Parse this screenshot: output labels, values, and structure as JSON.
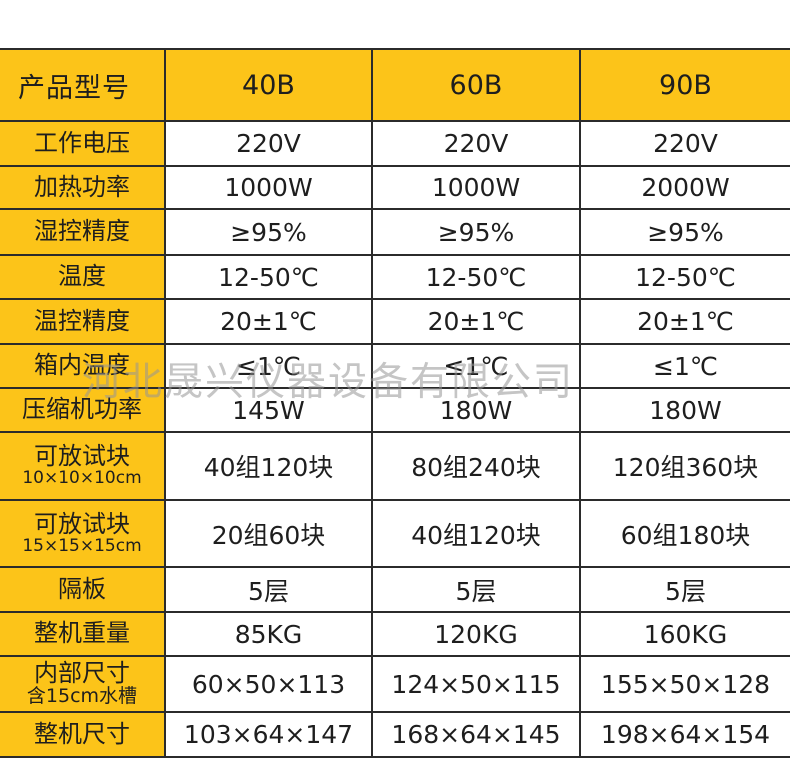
{
  "header": {
    "label": "产品型号",
    "models": [
      "40B",
      "60B",
      "90B"
    ]
  },
  "rows": [
    {
      "label": "工作电压",
      "values": [
        "220V",
        "220V",
        "220V"
      ]
    },
    {
      "label": "加热功率",
      "values": [
        "1000W",
        "1000W",
        "2000W"
      ]
    },
    {
      "label": "湿控精度",
      "values": [
        "≥95%",
        "≥95%",
        "≥95%"
      ]
    },
    {
      "label": "温度",
      "values": [
        "12-50℃",
        "12-50℃",
        "12-50℃"
      ]
    },
    {
      "label": "温控精度",
      "values": [
        "20±1℃",
        "20±1℃",
        "20±1℃"
      ]
    },
    {
      "label": "箱内温度",
      "values": [
        "≤1℃",
        "≤1℃",
        "≤1℃"
      ]
    },
    {
      "label": "压缩机功率",
      "values": [
        "145W",
        "180W",
        "180W"
      ]
    },
    {
      "label": "可放试块",
      "sublabel": "10×10×10cm",
      "values": [
        "40组120块",
        "80组240块",
        "120组360块"
      ]
    },
    {
      "label": "可放试块",
      "sublabel": "15×15×15cm",
      "values": [
        "20组60块",
        "40组120块",
        "60组180块"
      ]
    },
    {
      "label": "隔板",
      "values": [
        "5层",
        "5层",
        "5层"
      ]
    },
    {
      "label": "整机重量",
      "values": [
        "85KG",
        "120KG",
        "160KG"
      ]
    },
    {
      "label": "内部尺寸",
      "sublabel": "含15cm水槽",
      "values": [
        "60×50×113",
        "124×50×115",
        "155×50×128"
      ]
    },
    {
      "label": "整机尺寸",
      "values": [
        "103×64×147",
        "168×64×145",
        "198×64×154"
      ]
    }
  ],
  "watermark": "河北晟兴仪器设备有限公司",
  "colors": {
    "label_background": "#fcc419",
    "border": "#2b2b2b"
  }
}
